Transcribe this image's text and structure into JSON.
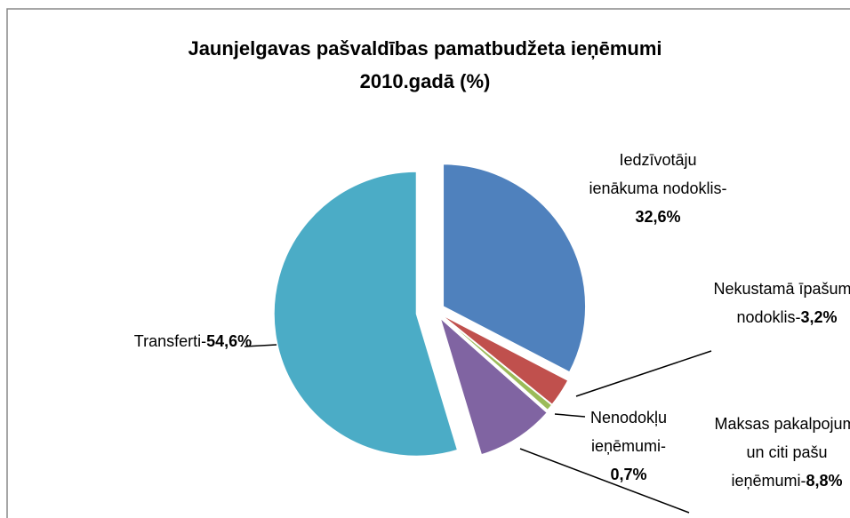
{
  "chart_data": {
    "type": "pie",
    "title": [
      "Jaunjelgavas pašvaldības   pamatbudžeta ieņēmumi",
      "2010.gadā (%)"
    ],
    "categories": [
      "Iedzīvotāju ienākuma nodoklis-",
      "Nekustamā īpašuma nodoklis-",
      "Nenodokļu ieņēmumi-",
      "Maksas pakalpojumi un citi pašu ieņēmumi-",
      "Transferti-"
    ],
    "values": [
      32.6,
      3.2,
      0.7,
      8.8,
      54.6
    ],
    "value_labels": [
      "32,6%",
      "3,2%",
      "0,7%",
      "8,8%",
      "54,6%"
    ],
    "colors": [
      "#4f81bd",
      "#c0504d",
      "#9bbb59",
      "#8064a2",
      "#4bacc6"
    ]
  }
}
